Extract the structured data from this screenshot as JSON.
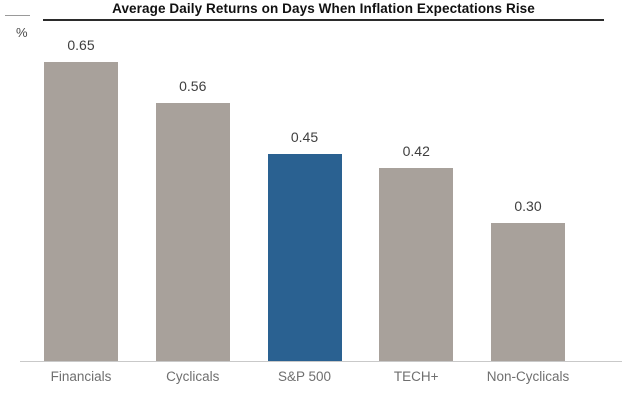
{
  "header": {
    "title": "Average Daily Returns on Days When Inflation Expectations Rise",
    "y_axis_unit": "%"
  },
  "chart_data": {
    "type": "bar",
    "title": "Average Daily Returns on Days When Inflation Expectations Rise",
    "categories": [
      "Financials",
      "Cyclicals",
      "S&P 500",
      "TECH+",
      "Non-Cyclicals"
    ],
    "values": [
      0.65,
      0.56,
      0.45,
      0.42,
      0.3
    ],
    "value_labels": [
      "0.65",
      "0.56",
      "0.45",
      "0.42",
      "0.30"
    ],
    "xlabel": "",
    "ylabel": "%",
    "ylim": [
      0,
      0.72
    ],
    "grid": false,
    "legend": false,
    "highlight_category": "S&P 500",
    "bar_colors": [
      "#a8a19b",
      "#a8a19b",
      "#2a6191",
      "#a8a19b",
      "#a8a19b"
    ],
    "default_bar_color": "#a8a19b",
    "highlight_color": "#2a6191"
  },
  "colors": {
    "bar_gray": "#a8a19b",
    "bar_blue": "#2a6191",
    "axis_line": "#c9c9c9",
    "title_text": "#111111",
    "value_text": "#3f3f3f",
    "category_text": "#6f6f6f",
    "background": "#ffffff"
  }
}
